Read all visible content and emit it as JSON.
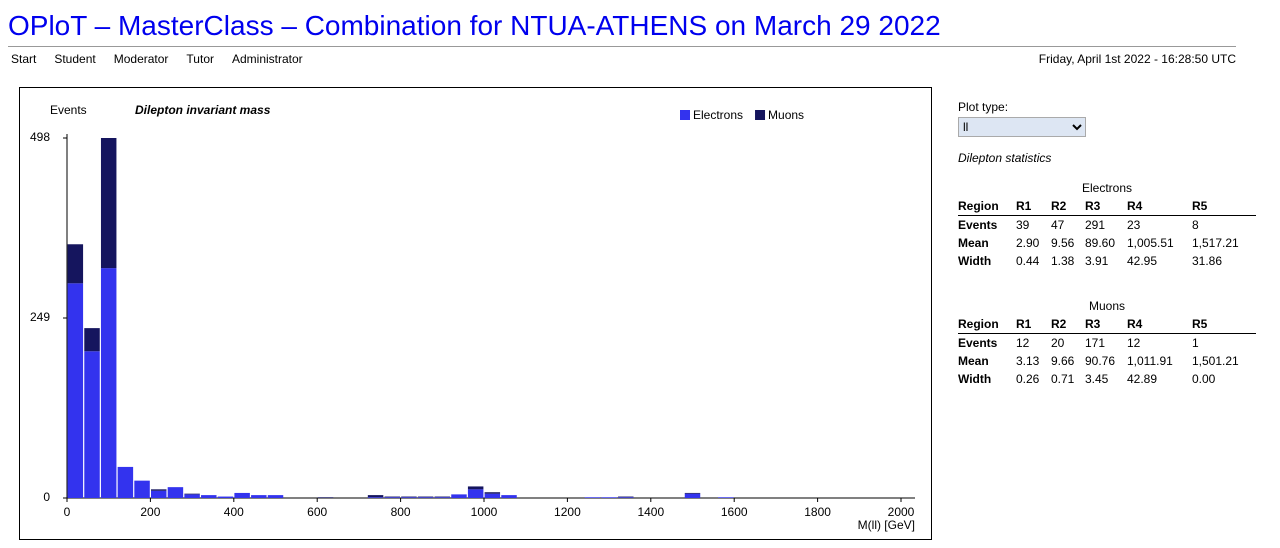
{
  "header": {
    "title": "OPloT – MasterClass – Combination for NTUA-ATHENS on March 29 2022",
    "nav": [
      "Start",
      "Student",
      "Moderator",
      "Tutor",
      "Administrator"
    ],
    "timestamp": "Friday, April 1st 2022 - 16:28:50 UTC"
  },
  "controls": {
    "plot_type_label": "Plot type:",
    "plot_type": "ll"
  },
  "stats": {
    "title": "Dilepton statistics",
    "tables": [
      {
        "caption": "Electrons",
        "header": [
          "Region",
          "R1",
          "R2",
          "R3",
          "R4",
          "R5"
        ],
        "rows": [
          [
            "Events",
            "39",
            "47",
            "291",
            "23",
            "8"
          ],
          [
            "Mean",
            "2.90",
            "9.56",
            "89.60",
            "1,005.51",
            "1,517.21"
          ],
          [
            "Width",
            "0.44",
            "1.38",
            "3.91",
            "42.95",
            "31.86"
          ]
        ]
      },
      {
        "caption": "Muons",
        "header": [
          "Region",
          "R1",
          "R2",
          "R3",
          "R4",
          "R5"
        ],
        "rows": [
          [
            "Events",
            "12",
            "20",
            "171",
            "12",
            "1"
          ],
          [
            "Mean",
            "3.13",
            "9.66",
            "90.76",
            "1,011.91",
            "1,501.21"
          ],
          [
            "Width",
            "0.26",
            "0.71",
            "3.45",
            "42.89",
            "0.00"
          ]
        ]
      }
    ]
  },
  "chart_data": {
    "type": "stacked_histogram",
    "title": "Dilepton invariant mass",
    "xlabel": "M(ll) [GeV]",
    "ylabel": "Events",
    "bins": [
      0,
      40,
      80,
      120,
      160,
      200,
      240,
      280,
      320,
      360,
      400,
      440,
      480,
      520,
      560,
      600,
      640,
      680,
      720,
      760,
      800,
      840,
      880,
      920,
      960,
      1000,
      1040,
      1080,
      1120,
      1160,
      1200,
      1240,
      1280,
      1320,
      1360,
      1400,
      1440,
      1480,
      1520,
      1560,
      1600,
      1640,
      1680,
      1720,
      1760,
      1800,
      1840,
      1880,
      1920,
      1960,
      2000
    ],
    "series": [
      {
        "name": "Electrons",
        "color": "#3333ee",
        "values": [
          297,
          203,
          318,
          43,
          24,
          10,
          15,
          5,
          4,
          2,
          7,
          4,
          4,
          0,
          0,
          0,
          0,
          0,
          1,
          1,
          1,
          1,
          1,
          5,
          12,
          6,
          4,
          0,
          0,
          0,
          0,
          1,
          1,
          1,
          0,
          0,
          0,
          6,
          0,
          1,
          0,
          0,
          0,
          0,
          0,
          0,
          0,
          0,
          0,
          0
        ]
      },
      {
        "name": "Muons",
        "color": "#15155e",
        "values": [
          54,
          32,
          180,
          0,
          0,
          2,
          0,
          1,
          0,
          0,
          0,
          0,
          0,
          0,
          0,
          1,
          0,
          0,
          3,
          1,
          1,
          1,
          1,
          0,
          4,
          2,
          0,
          0,
          0,
          0,
          0,
          0,
          0,
          1,
          0,
          0,
          0,
          1,
          0,
          0,
          0,
          0,
          0,
          0,
          0,
          0,
          0,
          0,
          0,
          0
        ]
      }
    ],
    "xlim": [
      0,
      2000
    ],
    "xticks": [
      0,
      200,
      400,
      600,
      800,
      1000,
      1200,
      1400,
      1600,
      1800,
      2000
    ],
    "ylim": [
      0,
      498
    ],
    "yticks": [
      0,
      249,
      498
    ],
    "legend": "top-right"
  }
}
